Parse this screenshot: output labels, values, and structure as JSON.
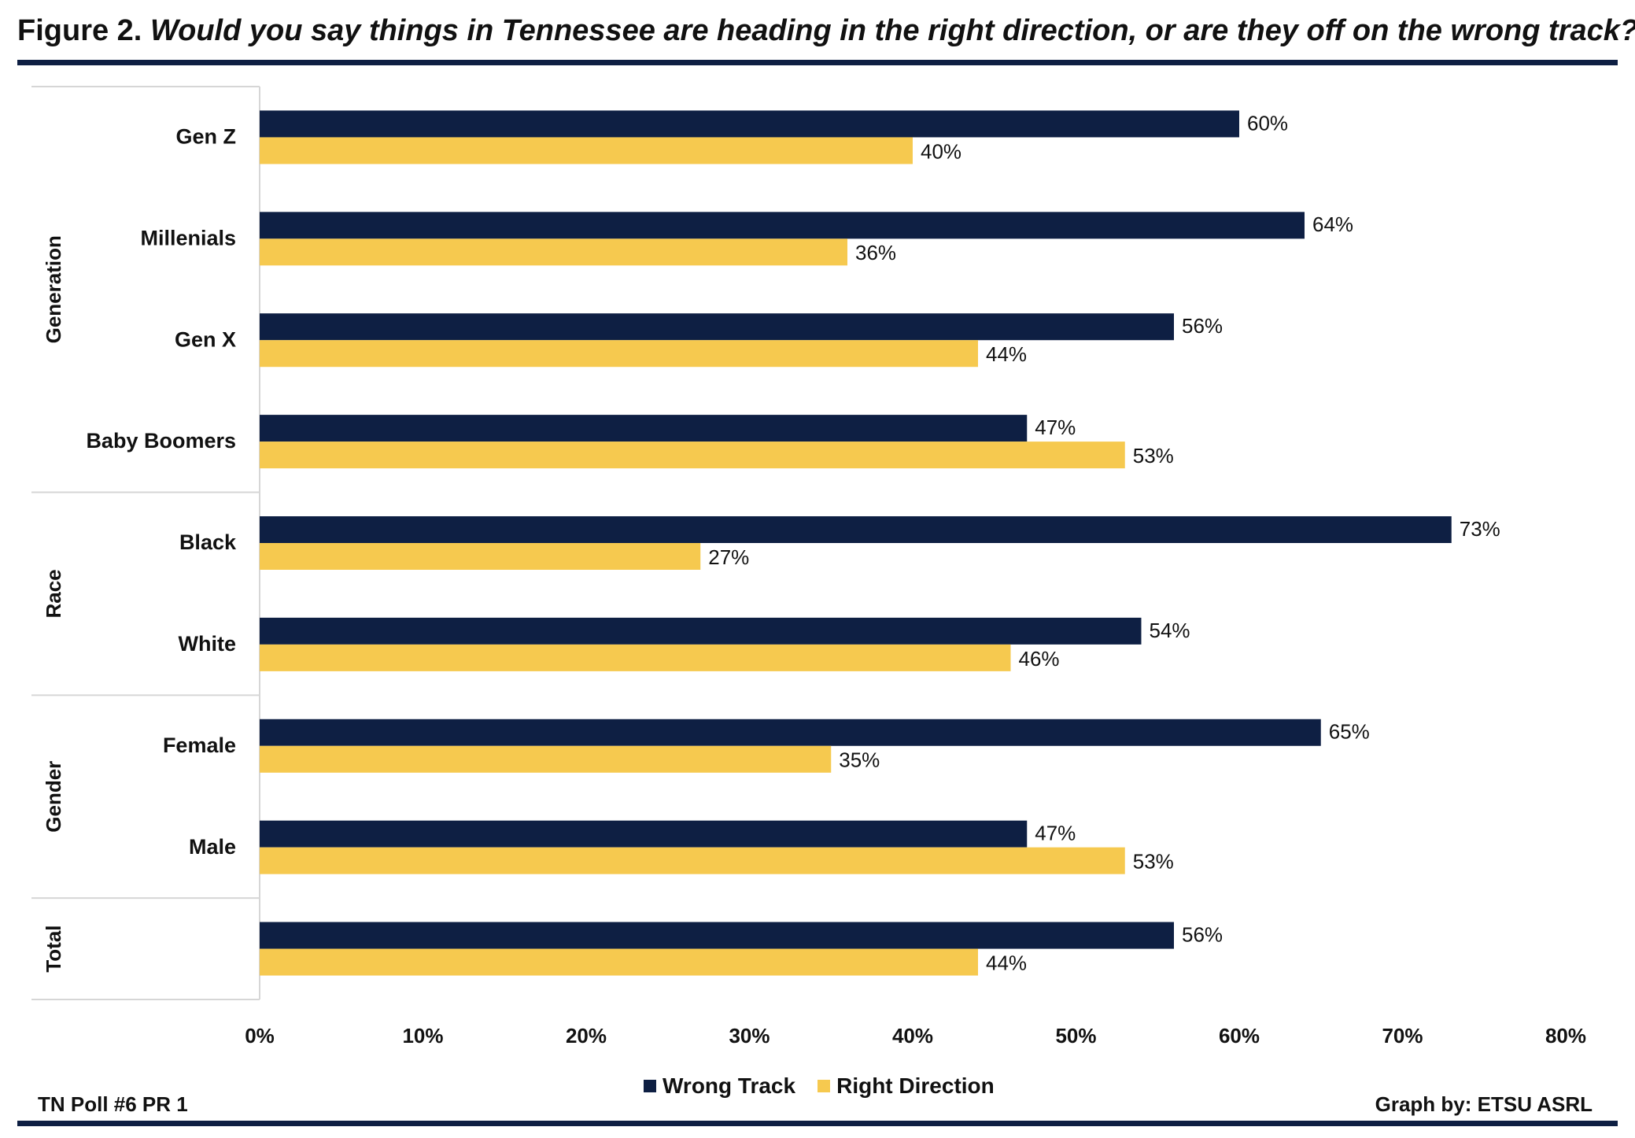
{
  "title": {
    "figure": "Figure 2.",
    "question": "Would you say things in Tennessee are heading in the right direction, or are they off on the wrong track?"
  },
  "footer": {
    "left": "TN Poll #6 PR 1",
    "right": "Graph by: ETSU ASRL"
  },
  "legend": {
    "wrong_track": "Wrong Track",
    "right_direction": "Right Direction"
  },
  "colors": {
    "wrong_track": "#0e1f43",
    "right_direction": "#f6c94f",
    "rule": "#0e1f43"
  },
  "chart_data": {
    "type": "bar",
    "orientation": "horizontal",
    "groups": [
      {
        "name": "Generation",
        "categories": [
          "Gen Z",
          "Millenials",
          "Gen X",
          "Baby Boomers"
        ]
      },
      {
        "name": "Race",
        "categories": [
          "Black",
          "White"
        ]
      },
      {
        "name": "Gender",
        "categories": [
          "Female",
          "Male"
        ]
      },
      {
        "name": "Total",
        "categories": [
          ""
        ]
      }
    ],
    "categories": [
      "Gen Z",
      "Millenials",
      "Gen X",
      "Baby Boomers",
      "Black",
      "White",
      "Female",
      "Male",
      ""
    ],
    "series": [
      {
        "name": "Wrong Track",
        "values": [
          60,
          64,
          56,
          47,
          73,
          54,
          65,
          47,
          56
        ]
      },
      {
        "name": "Right Direction",
        "values": [
          40,
          36,
          44,
          53,
          27,
          46,
          35,
          53,
          44
        ]
      }
    ],
    "xlim": [
      0,
      80
    ],
    "xticks": [
      "0%",
      "10%",
      "20%",
      "30%",
      "40%",
      "50%",
      "60%",
      "70%",
      "80%"
    ],
    "value_format": "percent",
    "legend_position": "bottom",
    "grid": false
  }
}
